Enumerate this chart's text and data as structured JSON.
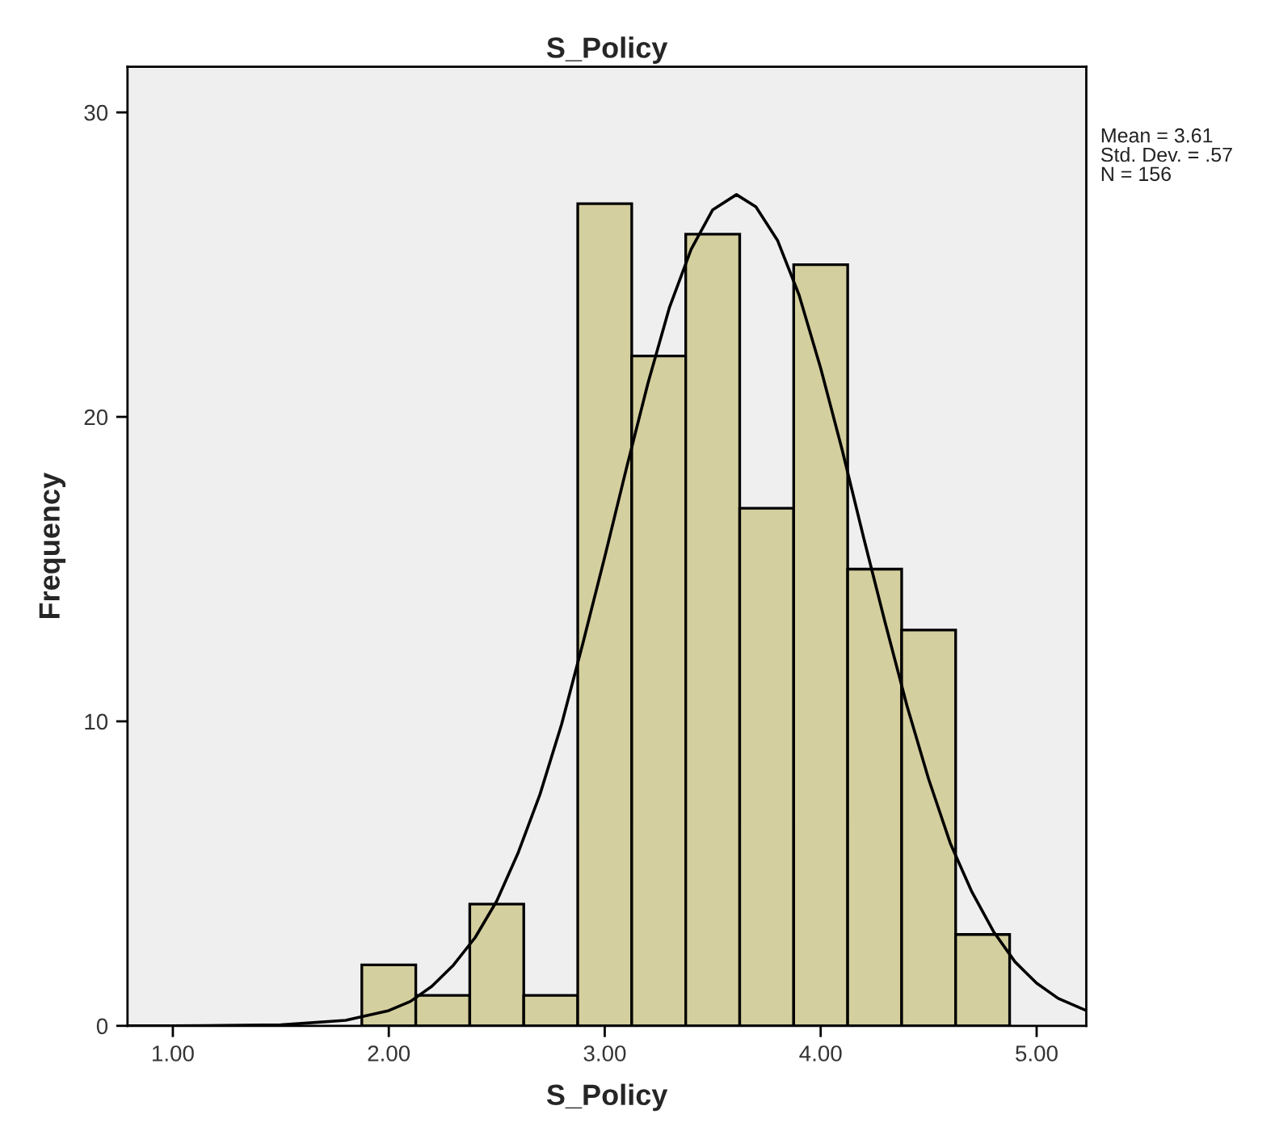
{
  "chart_data": {
    "type": "histogram",
    "title": "S_Policy",
    "xlabel": "S_Policy",
    "ylabel": "Frequency",
    "bins": [
      1.875,
      2.125,
      2.375,
      2.625,
      2.875,
      3.125,
      3.375,
      3.625,
      3.875,
      4.125,
      4.375,
      4.625,
      4.875
    ],
    "values": [
      2,
      1,
      4,
      1,
      27,
      22,
      26,
      17,
      25,
      15,
      13,
      3
    ],
    "color": "#d4cf9e",
    "series": [
      {
        "type": "line",
        "color": "#000000",
        "x": [
          0.79,
          1.0,
          1.5,
          1.8,
          2.0,
          2.1,
          2.2,
          2.3,
          2.4,
          2.5,
          2.6,
          2.7,
          2.8,
          2.9,
          3.0,
          3.1,
          3.2,
          3.3,
          3.4,
          3.5,
          3.61,
          3.7,
          3.8,
          3.9,
          4.0,
          4.1,
          4.2,
          4.3,
          4.4,
          4.5,
          4.6,
          4.7,
          4.8,
          4.9,
          5.0,
          5.1,
          5.23
        ],
        "values": [
          0.0,
          0.0,
          0.03,
          0.18,
          0.5,
          0.8,
          1.3,
          2.0,
          2.9,
          4.1,
          5.7,
          7.6,
          9.9,
          12.6,
          15.4,
          18.3,
          21.1,
          23.6,
          25.5,
          26.8,
          27.3,
          26.9,
          25.8,
          24.0,
          21.6,
          18.9,
          16.0,
          13.2,
          10.5,
          8.1,
          6.0,
          4.4,
          3.1,
          2.1,
          1.4,
          0.9,
          0.5
        ]
      }
    ],
    "xlim": [
      0.79,
      5.23
    ],
    "ylim": [
      0,
      31.5
    ],
    "xticks": [
      {
        "value": 1,
        "label": "1.00"
      },
      {
        "value": 2,
        "label": "2.00"
      },
      {
        "value": 3,
        "label": "3.00"
      },
      {
        "value": 4,
        "label": "4.00"
      },
      {
        "value": 5,
        "label": "5.00"
      }
    ],
    "yticks": [
      0,
      10,
      20,
      30
    ],
    "grid": false,
    "legend": false,
    "annotations": [
      "Mean = 3.61",
      "Std. Dev. = .57",
      "N = 156"
    ]
  }
}
